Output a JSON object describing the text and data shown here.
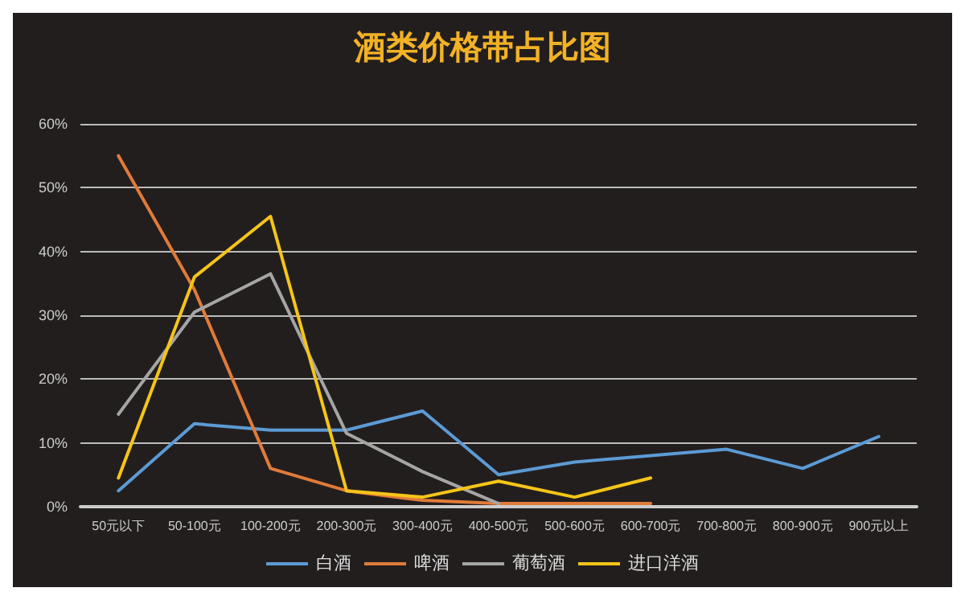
{
  "chart_data": {
    "type": "line",
    "title": "酒类价格带占比图",
    "categories": [
      "50元以下",
      "50-100元",
      "100-200元",
      "200-300元",
      "300-400元",
      "400-500元",
      "500-600元",
      "600-700元",
      "700-800元",
      "800-900元",
      "900元以上"
    ],
    "series": [
      {
        "name": "白酒",
        "color": "#5b9bd5",
        "values": [
          2.5,
          13,
          12,
          12,
          15,
          5,
          7,
          8,
          9,
          6,
          11
        ]
      },
      {
        "name": "啤酒",
        "color": "#e07b39",
        "values": [
          55,
          34,
          6,
          2.5,
          1,
          0.5,
          0.5,
          0.5,
          null,
          null,
          null
        ]
      },
      {
        "name": "葡萄酒",
        "color": "#a5a5a5",
        "values": [
          14.5,
          30.5,
          36.5,
          11.5,
          5.5,
          0.5,
          null,
          null,
          null,
          null,
          null
        ]
      },
      {
        "name": "进口洋酒",
        "color": "#f5c518",
        "values": [
          4.5,
          36,
          45.5,
          2.5,
          1.5,
          4,
          1.5,
          4.5,
          null,
          null,
          null
        ]
      }
    ],
    "ylim": [
      0,
      60
    ],
    "yticks": [
      {
        "value": 0,
        "label": "0%"
      },
      {
        "value": 10,
        "label": "10%"
      },
      {
        "value": 20,
        "label": "20%"
      },
      {
        "value": 30,
        "label": "30%"
      },
      {
        "value": 40,
        "label": "40%"
      },
      {
        "value": 50,
        "label": "50%"
      },
      {
        "value": 60,
        "label": "60%"
      }
    ],
    "grid": "y",
    "legend": "bottom",
    "marker": "none",
    "line_style": "solid"
  }
}
